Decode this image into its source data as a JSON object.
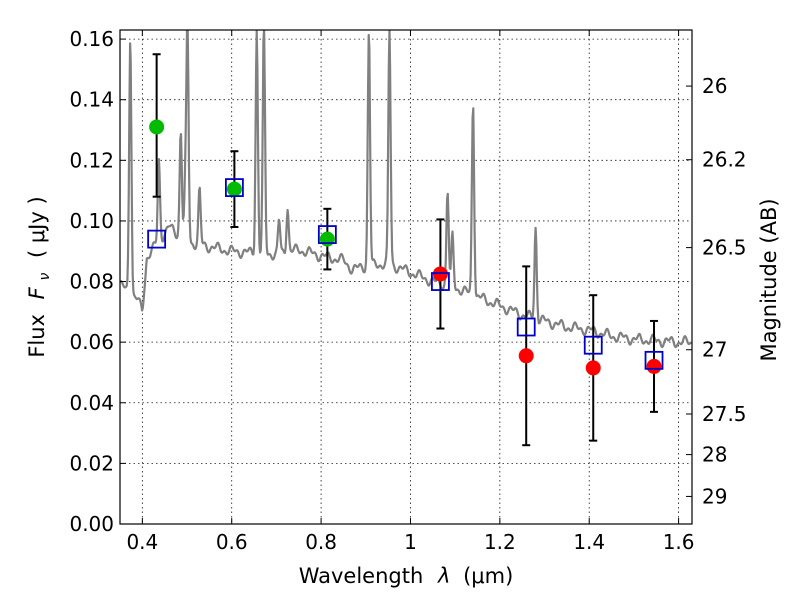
{
  "chart_data": {
    "type": "scatter",
    "title": "",
    "xlabel": "Wavelength  λ (μm)",
    "ylabel": "Flux  F_ν  ( μJy )",
    "ylabel_parts": {
      "word": "Flux",
      "symbol": "F",
      "subscript": "ν",
      "unit": "( μJy )"
    },
    "xlabel_parts": {
      "word": "Wavelength",
      "symbol": "λ",
      "unit": "(μm)"
    },
    "y2label": "Magnitude (AB)",
    "xlim": [
      0.35,
      1.63
    ],
    "ylim": [
      0.0,
      0.163
    ],
    "grid": true,
    "x_ticks": [
      {
        "value": 0.4,
        "label": "0.4"
      },
      {
        "value": 0.6,
        "label": "0.6"
      },
      {
        "value": 0.8,
        "label": "0.8"
      },
      {
        "value": 1.0,
        "label": "1"
      },
      {
        "value": 1.2,
        "label": "1.2"
      },
      {
        "value": 1.4,
        "label": "1.4"
      },
      {
        "value": 1.6,
        "label": "1.6"
      }
    ],
    "y_ticks": [
      {
        "value": 0.0,
        "label": "0.00"
      },
      {
        "value": 0.02,
        "label": "0.02"
      },
      {
        "value": 0.04,
        "label": "0.04"
      },
      {
        "value": 0.06,
        "label": "0.06"
      },
      {
        "value": 0.08,
        "label": "0.08"
      },
      {
        "value": 0.1,
        "label": "0.10"
      },
      {
        "value": 0.12,
        "label": "0.12"
      },
      {
        "value": 0.14,
        "label": "0.14"
      },
      {
        "value": 0.16,
        "label": "0.16"
      }
    ],
    "y2_ticks": [
      {
        "flux": 0.1445,
        "label": "26"
      },
      {
        "flux": 0.1202,
        "label": "26.2"
      },
      {
        "flux": 0.0912,
        "label": "26.5"
      },
      {
        "flux": 0.0575,
        "label": "27"
      },
      {
        "flux": 0.0363,
        "label": "27.5"
      },
      {
        "flux": 0.0229,
        "label": "28"
      },
      {
        "flux": 0.0091,
        "label": "29"
      }
    ],
    "series": [
      {
        "name": "Observed optical",
        "marker": "circle",
        "color": "#00bb00",
        "points": [
          {
            "x": 0.432,
            "y": 0.131,
            "yerr_low": 0.108,
            "yerr_high": 0.155
          },
          {
            "x": 0.606,
            "y": 0.1105,
            "yerr_low": 0.098,
            "yerr_high": 0.123
          },
          {
            "x": 0.814,
            "y": 0.094,
            "yerr_low": 0.084,
            "yerr_high": 0.104
          }
        ]
      },
      {
        "name": "Observed near-IR",
        "marker": "circle",
        "color": "#ff0000",
        "points": [
          {
            "x": 1.067,
            "y": 0.0825,
            "yerr_low": 0.0645,
            "yerr_high": 0.1005
          },
          {
            "x": 1.259,
            "y": 0.0555,
            "yerr_low": 0.026,
            "yerr_high": 0.085
          },
          {
            "x": 1.409,
            "y": 0.0515,
            "yerr_low": 0.0275,
            "yerr_high": 0.0755
          },
          {
            "x": 1.545,
            "y": 0.052,
            "yerr_low": 0.037,
            "yerr_high": 0.067
          }
        ]
      },
      {
        "name": "Model synthetic photometry",
        "marker": "open-square",
        "color": "#0000cc",
        "points": [
          {
            "x": 0.432,
            "y": 0.094
          },
          {
            "x": 0.606,
            "y": 0.111
          },
          {
            "x": 0.814,
            "y": 0.0955
          },
          {
            "x": 1.067,
            "y": 0.08
          },
          {
            "x": 1.259,
            "y": 0.065
          },
          {
            "x": 1.409,
            "y": 0.059
          },
          {
            "x": 1.545,
            "y": 0.054
          }
        ]
      }
    ],
    "model_spectrum": {
      "name": "Model SED",
      "color": "#808080",
      "continuum": [
        [
          0.35,
          0.079
        ],
        [
          0.39,
          0.074
        ],
        [
          0.4,
          0.07
        ],
        [
          0.41,
          0.088
        ],
        [
          0.43,
          0.092
        ],
        [
          0.46,
          0.098
        ],
        [
          0.5,
          0.093
        ],
        [
          0.55,
          0.0915
        ],
        [
          0.6,
          0.09
        ],
        [
          0.65,
          0.0895
        ],
        [
          0.7,
          0.089
        ],
        [
          0.75,
          0.0905
        ],
        [
          0.8,
          0.0885
        ],
        [
          0.85,
          0.087
        ],
        [
          0.87,
          0.084
        ],
        [
          0.9,
          0.085
        ],
        [
          0.95,
          0.086
        ],
        [
          1.0,
          0.083
        ],
        [
          1.05,
          0.08
        ],
        [
          1.1,
          0.078
        ],
        [
          1.2,
          0.072
        ],
        [
          1.25,
          0.069
        ],
        [
          1.3,
          0.067
        ],
        [
          1.35,
          0.065
        ],
        [
          1.4,
          0.064
        ],
        [
          1.45,
          0.062
        ],
        [
          1.5,
          0.061
        ],
        [
          1.55,
          0.0605
        ],
        [
          1.6,
          0.06
        ],
        [
          1.63,
          0.06
        ]
      ],
      "lines": [
        {
          "x": 0.373,
          "peak": 0.162
        },
        {
          "x": 0.437,
          "peak": 0.12
        },
        {
          "x": 0.486,
          "peak": 0.13
        },
        {
          "x": 0.496,
          "peak": 0.11
        },
        {
          "x": 0.501,
          "peak": 0.163
        },
        {
          "x": 0.528,
          "peak": 0.11
        },
        {
          "x": 0.656,
          "peak": 0.163
        },
        {
          "x": 0.672,
          "peak": 0.163
        },
        {
          "x": 0.706,
          "peak": 0.1
        },
        {
          "x": 0.725,
          "peak": 0.105
        },
        {
          "x": 0.907,
          "peak": 0.163
        },
        {
          "x": 0.953,
          "peak": 0.163
        },
        {
          "x": 1.083,
          "peak": 0.11
        },
        {
          "x": 1.094,
          "peak": 0.095
        },
        {
          "x": 1.14,
          "peak": 0.14
        },
        {
          "x": 1.28,
          "peak": 0.098
        }
      ]
    }
  }
}
